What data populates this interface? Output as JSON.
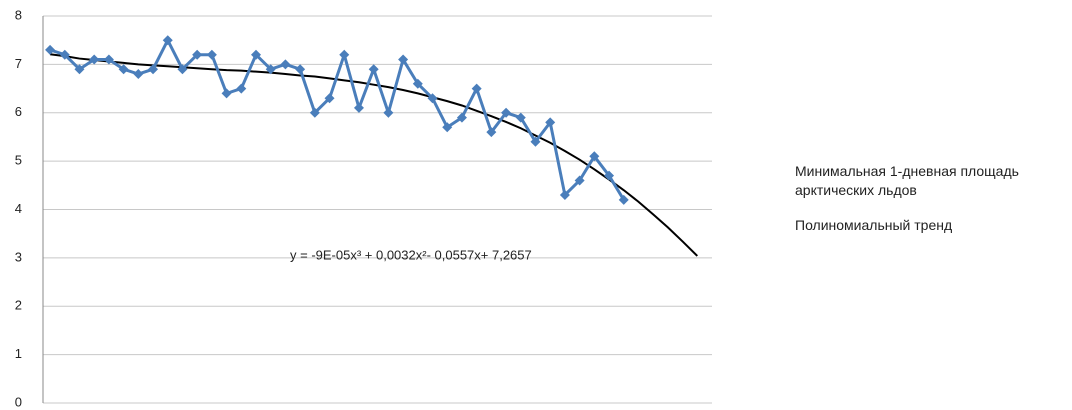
{
  "chart_data": {
    "type": "line",
    "trend_equation": "y = -9E-05x³ + 0,0032x²- 0,0557x+ 7,2657",
    "x": [
      1,
      2,
      3,
      4,
      5,
      6,
      7,
      8,
      9,
      10,
      11,
      12,
      13,
      14,
      15,
      16,
      17,
      18,
      19,
      20,
      21,
      22,
      23,
      24,
      25,
      26,
      27,
      28,
      29,
      30,
      31,
      32,
      33,
      34,
      35,
      36,
      37,
      38,
      39,
      40,
      41,
      42,
      43,
      44,
      45
    ],
    "series": [
      {
        "name": "Минимальная 1-дневная площадь арктических льдов",
        "color": "#4a7ebb",
        "marker": "diamond",
        "values": [
          7.3,
          7.2,
          6.9,
          7.1,
          7.1,
          6.9,
          6.8,
          6.9,
          7.5,
          6.9,
          7.2,
          7.2,
          6.4,
          6.5,
          7.2,
          6.9,
          7.0,
          6.9,
          6.0,
          6.3,
          7.2,
          6.1,
          6.9,
          6.0,
          7.1,
          6.6,
          6.3,
          5.7,
          5.9,
          6.5,
          5.6,
          6.0,
          5.9,
          5.4,
          5.8,
          4.3,
          4.6,
          5.1,
          4.7,
          4.2,
          null,
          null,
          null,
          null,
          null
        ]
      },
      {
        "name": "Полиномиальный тренд",
        "color": "#000000",
        "marker": "none",
        "values": [
          7.21,
          7.17,
          7.12,
          7.09,
          7.06,
          7.03,
          7.0,
          6.98,
          6.96,
          6.94,
          6.92,
          6.9,
          6.88,
          6.87,
          6.85,
          6.83,
          6.8,
          6.77,
          6.75,
          6.71,
          6.67,
          6.63,
          6.58,
          6.53,
          6.47,
          6.4,
          6.32,
          6.24,
          6.15,
          6.04,
          5.93,
          5.81,
          5.68,
          5.53,
          5.38,
          5.21,
          5.03,
          4.83,
          4.62,
          4.4,
          4.16,
          3.9,
          3.63,
          3.34,
          3.04
        ]
      }
    ],
    "xlim": [
      0.52,
      46.0
    ],
    "ylim": [
      0,
      8
    ],
    "yticks": [
      0,
      1,
      2,
      3,
      4,
      5,
      6,
      7,
      8
    ],
    "grid": true,
    "legend": "right"
  }
}
